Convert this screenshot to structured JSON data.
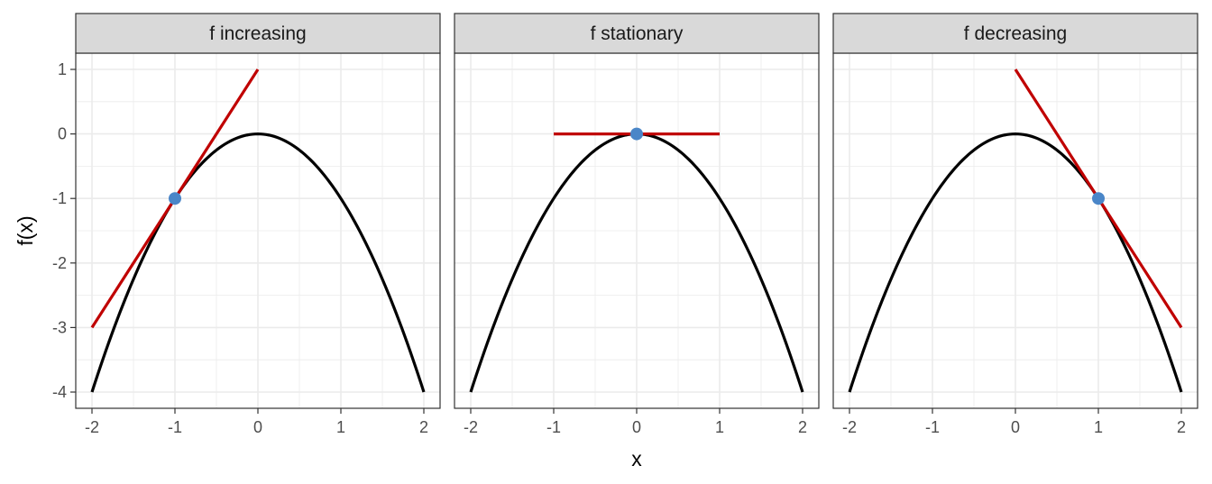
{
  "chart_data": {
    "type": "line",
    "function": "f(x) = -x^2",
    "xlabel": "x",
    "ylabel": "f(x)",
    "xlim": [
      -2,
      2
    ],
    "ylim": [
      -4,
      1
    ],
    "x_ticks": [
      -2,
      -1,
      0,
      1,
      2
    ],
    "y_ticks": [
      1,
      0,
      -1,
      -2,
      -3,
      -4
    ],
    "x_tick_labels": [
      "-2",
      "-1",
      "0",
      "1",
      "2"
    ],
    "y_tick_labels": [
      "1",
      "0",
      "-1",
      "-2",
      "-3",
      "-4"
    ],
    "grid": true,
    "colors": {
      "curve": "#000000",
      "tangent": "#c00000",
      "point": "#4a86c8",
      "strip_fill": "#d9d9d9",
      "grid": "#ebebeb",
      "panel_border": "#333333"
    },
    "panels": [
      {
        "label": "f increasing",
        "point": {
          "x": -1,
          "y": -1
        },
        "tangent": {
          "x": [
            -2,
            0
          ],
          "y": [
            -3,
            1
          ]
        }
      },
      {
        "label": "f stationary",
        "point": {
          "x": 0,
          "y": 0
        },
        "tangent": {
          "x": [
            -1,
            1
          ],
          "y": [
            0,
            0
          ]
        }
      },
      {
        "label": "f decreasing",
        "point": {
          "x": 1,
          "y": -1
        },
        "tangent": {
          "x": [
            0,
            2
          ],
          "y": [
            1,
            -3
          ]
        }
      }
    ]
  }
}
